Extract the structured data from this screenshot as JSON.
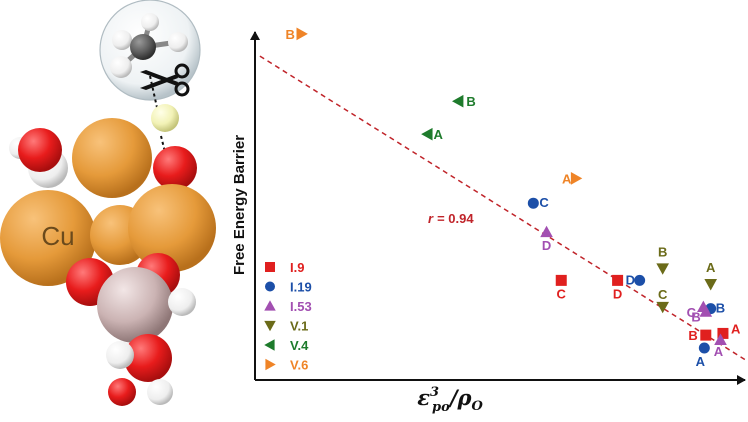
{
  "molecule": {
    "labels": {
      "cu_label": "Cu"
    },
    "colors": {
      "copper": "#e59a3a",
      "oxygen": "#e81c1c",
      "hydrogen": "#f4f4f4",
      "carbon": "#5d5d5d",
      "silicon": "#cbb3b3",
      "dopant": "#f2f2b6"
    },
    "icons": {
      "scissors": "scissors-icon",
      "bond_arrow": "dotted-arrow-down-icon"
    }
  },
  "chart_data": {
    "type": "scatter",
    "ylabel": "Free Energy Barrier",
    "xlabel": "ε_{po}^{3}/ρ_{O}",
    "xlabel_parts": {
      "base": "ε",
      "sup": "3",
      "sub": "po",
      "sep": "/",
      "den": "ρ",
      "den_sub": "O"
    },
    "axis_ticks": "none",
    "grid": false,
    "legend_position": "left",
    "fit_line": {
      "style": "dashed",
      "color": "#c0242a",
      "x": [
        0.0,
        1.0
      ],
      "y": [
        1.0,
        0.0
      ]
    },
    "annotation": {
      "r_label": "r",
      "r_value": "= 0.94"
    },
    "series": [
      {
        "name": "I.9",
        "marker": "square",
        "color": "#e0201f",
        "points": [
          {
            "label": "A",
            "x": 0.955,
            "y": 0.137
          },
          {
            "label": "B",
            "x": 0.92,
            "y": 0.132
          },
          {
            "label": "C",
            "x": 0.625,
            "y": 0.293
          },
          {
            "label": "D",
            "x": 0.74,
            "y": 0.293
          }
        ]
      },
      {
        "name": "I.19",
        "marker": "circle",
        "color": "#1c4fa8",
        "points": [
          {
            "label": "A",
            "x": 0.917,
            "y": 0.094
          },
          {
            "label": "B",
            "x": 0.93,
            "y": 0.21
          },
          {
            "label": "C",
            "x": 0.568,
            "y": 0.52
          },
          {
            "label": "D",
            "x": 0.785,
            "y": 0.293
          }
        ]
      },
      {
        "name": "I.53",
        "marker": "triangle-up",
        "color": "#a24fb1",
        "points": [
          {
            "label": "A",
            "x": 0.95,
            "y": 0.118
          },
          {
            "label": "B",
            "x": 0.92,
            "y": 0.201
          },
          {
            "label": "C",
            "x": 0.915,
            "y": 0.215
          },
          {
            "label": "D",
            "x": 0.595,
            "y": 0.435
          }
        ]
      },
      {
        "name": "V.1",
        "marker": "triangle-down",
        "color": "#6b6b19",
        "points": [
          {
            "label": "A",
            "x": 0.93,
            "y": 0.282
          },
          {
            "label": "B",
            "x": 0.832,
            "y": 0.328
          },
          {
            "label": "C",
            "x": 0.832,
            "y": 0.215
          }
        ]
      },
      {
        "name": "V.4",
        "marker": "triangle-left",
        "color": "#1e7b2c",
        "points": [
          {
            "label": "A",
            "x": 0.352,
            "y": 0.723
          },
          {
            "label": "B",
            "x": 0.415,
            "y": 0.82
          }
        ]
      },
      {
        "name": "V.6",
        "marker": "triangle-right",
        "color": "#ef8427",
        "points": [
          {
            "label": "A",
            "x": 0.655,
            "y": 0.593
          },
          {
            "label": "B",
            "x": 0.095,
            "y": 1.018
          }
        ]
      }
    ]
  }
}
